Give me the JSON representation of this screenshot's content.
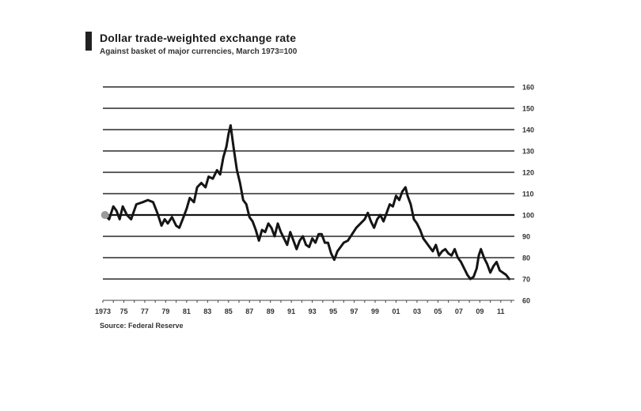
{
  "chart_data": {
    "type": "line",
    "title": "Dollar trade-weighted exchange rate",
    "subtitle": "Against basket of major currencies, March 1973=100",
    "source": "Source: Federal Reserve",
    "xlabel": "",
    "ylabel": "",
    "xlim": [
      1973,
      2012.3
    ],
    "ylim": [
      60,
      160
    ],
    "y_ticks": [
      60,
      70,
      80,
      90,
      100,
      110,
      120,
      130,
      140,
      150,
      160
    ],
    "x_tick_labels": [
      {
        "x": 1973,
        "label": "1973"
      },
      {
        "x": 1975,
        "label": "75"
      },
      {
        "x": 1977,
        "label": "77"
      },
      {
        "x": 1979,
        "label": "79"
      },
      {
        "x": 1981,
        "label": "81"
      },
      {
        "x": 1983,
        "label": "83"
      },
      {
        "x": 1985,
        "label": "85"
      },
      {
        "x": 1987,
        "label": "87"
      },
      {
        "x": 1989,
        "label": "89"
      },
      {
        "x": 1991,
        "label": "91"
      },
      {
        "x": 1993,
        "label": "93"
      },
      {
        "x": 1995,
        "label": "95"
      },
      {
        "x": 1997,
        "label": "97"
      },
      {
        "x": 1999,
        "label": "99"
      },
      {
        "x": 2001,
        "label": "01"
      },
      {
        "x": 2003,
        "label": "03"
      },
      {
        "x": 2005,
        "label": "05"
      },
      {
        "x": 2007,
        "label": "07"
      },
      {
        "x": 2009,
        "label": "09"
      },
      {
        "x": 2011,
        "label": "11"
      }
    ],
    "grid": true,
    "y_axis_side": "right",
    "baseline": 100,
    "series": [
      {
        "x": [
          1973.2,
          1973.6,
          1974.0,
          1974.3,
          1974.6,
          1974.9,
          1975.3,
          1975.7,
          1976.2,
          1976.8,
          1977.3,
          1977.8,
          1978.2,
          1978.6,
          1978.9,
          1979.2,
          1979.6,
          1980.0,
          1980.3,
          1980.7,
          1981.0,
          1981.3,
          1981.7,
          1982.0,
          1982.4,
          1982.8,
          1983.1,
          1983.5,
          1983.9,
          1984.2,
          1984.5,
          1984.8,
          1985.0,
          1985.2,
          1985.5,
          1985.8,
          1986.1,
          1986.4,
          1986.7,
          1987.0,
          1987.3,
          1987.6,
          1987.9,
          1988.2,
          1988.5,
          1988.8,
          1989.1,
          1989.4,
          1989.7,
          1990.0,
          1990.3,
          1990.6,
          1990.9,
          1991.2,
          1991.5,
          1991.8,
          1992.1,
          1992.4,
          1992.7,
          1993.0,
          1993.3,
          1993.6,
          1993.9,
          1994.2,
          1994.5,
          1994.8,
          1995.1,
          1995.4,
          1995.7,
          1996.0,
          1996.4,
          1996.8,
          1997.2,
          1997.6,
          1998.0,
          1998.3,
          1998.6,
          1998.9,
          1999.2,
          1999.5,
          1999.8,
          2000.1,
          2000.4,
          2000.7,
          2001.0,
          2001.3,
          2001.6,
          2001.9,
          2002.1,
          2002.4,
          2002.7,
          2003.0,
          2003.3,
          2003.6,
          2003.9,
          2004.2,
          2004.5,
          2004.8,
          2005.1,
          2005.4,
          2005.7,
          2006.0,
          2006.3,
          2006.6,
          2006.9,
          2007.2,
          2007.5,
          2007.8,
          2008.1,
          2008.4,
          2008.7,
          2008.9,
          2009.1,
          2009.4,
          2009.7,
          2010.0,
          2010.3,
          2010.6,
          2010.9,
          2011.2,
          2011.5,
          2011.8
        ],
        "y": [
          100,
          98,
          104,
          102,
          98,
          104,
          100,
          98,
          105,
          106,
          107,
          106,
          101,
          95,
          98,
          96,
          99,
          95,
          94,
          99,
          103,
          108,
          106,
          113,
          115,
          113,
          118,
          117,
          121,
          119,
          127,
          132,
          138,
          142,
          131,
          121,
          115,
          107,
          105,
          99,
          97,
          93,
          88,
          93,
          92,
          96,
          94,
          90,
          96,
          92,
          89,
          86,
          92,
          88,
          84,
          88,
          90,
          86,
          85,
          89,
          87,
          91,
          91,
          87,
          87,
          82,
          79,
          83,
          85,
          87,
          88,
          91,
          94,
          96,
          98,
          101,
          97,
          94,
          98,
          100,
          97,
          101,
          105,
          104,
          109,
          107,
          111,
          113,
          109,
          105,
          98,
          96,
          93,
          89,
          87,
          85,
          83,
          86,
          81,
          83,
          84,
          82,
          81,
          84,
          80,
          78,
          75,
          72,
          70,
          71,
          75,
          81,
          84,
          80,
          77,
          73,
          76,
          78,
          74,
          73,
          72,
          70
        ]
      }
    ]
  }
}
